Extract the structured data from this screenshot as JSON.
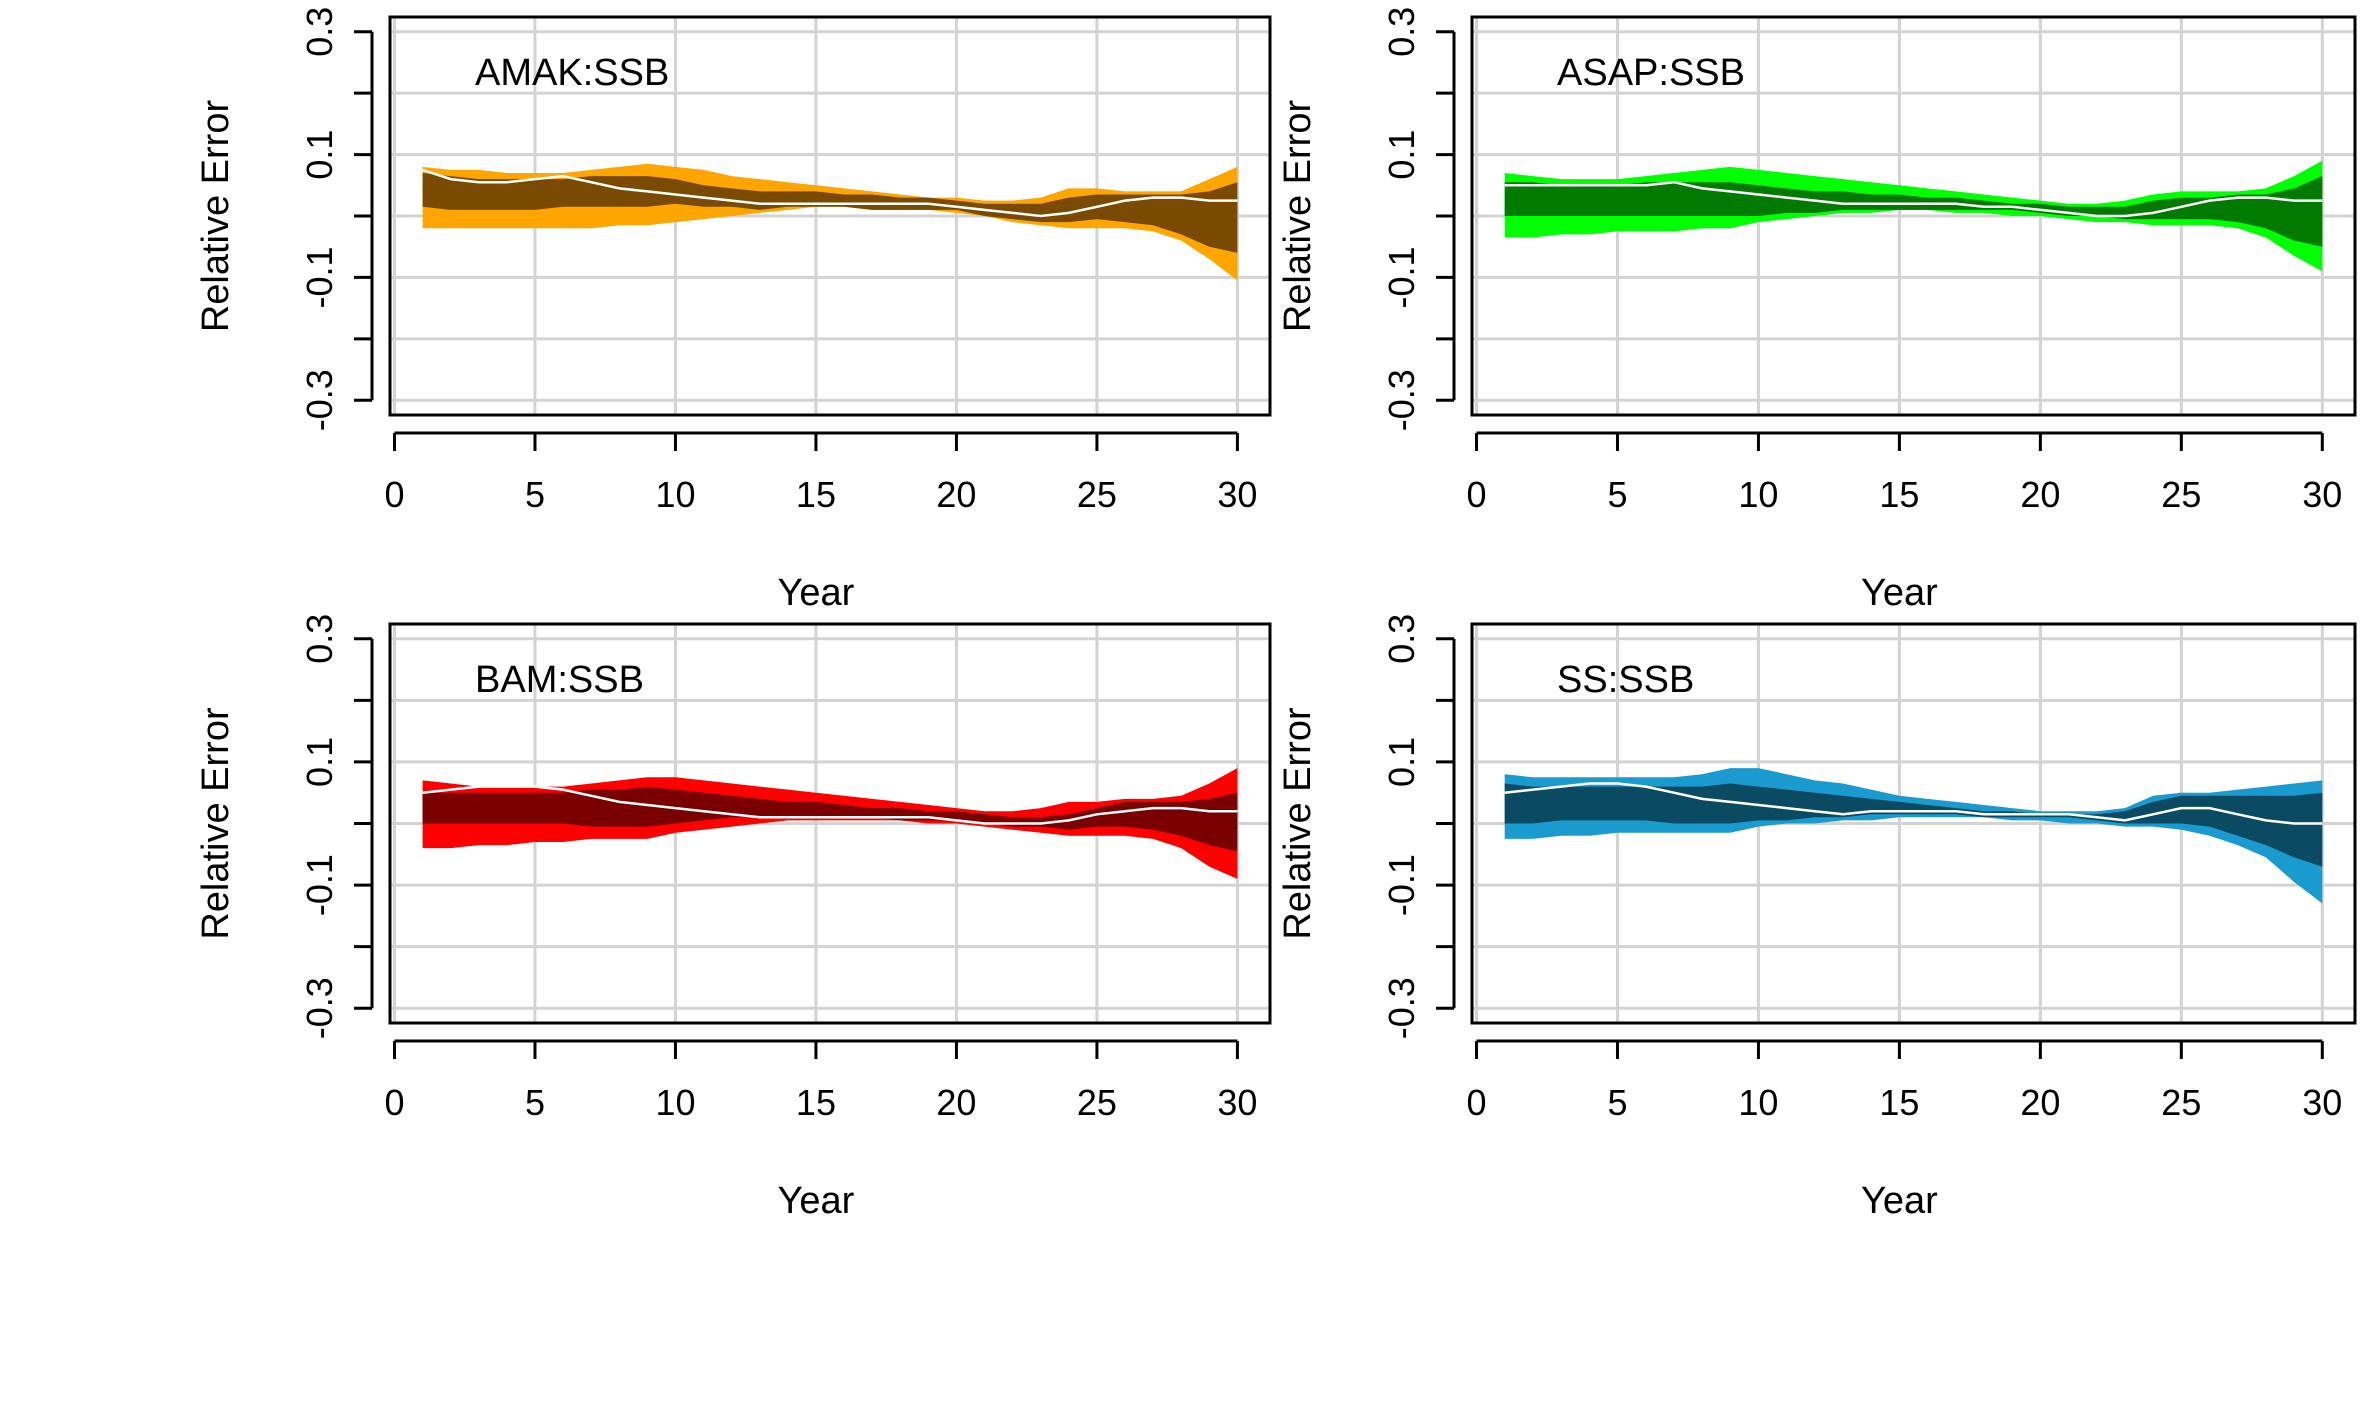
{
  "chart_data": [
    {
      "type": "area",
      "title": "AMAK:SSB",
      "xlabel": "Year",
      "ylabel": "Relative Error",
      "xlim": [
        0,
        30
      ],
      "ylim": [
        -0.3,
        0.3
      ],
      "xticks": [
        "0",
        "5",
        "10",
        "15",
        "20",
        "25",
        "30"
      ],
      "yticks": [
        "-0.3",
        "-0.1",
        "0.1",
        "0.3"
      ],
      "grid": true,
      "colors": {
        "outer": "#FFA500",
        "inner": "#7A4A00",
        "median": "#FFFFFF"
      },
      "x": [
        1,
        2,
        3,
        4,
        5,
        6,
        7,
        8,
        9,
        10,
        11,
        12,
        13,
        14,
        15,
        16,
        17,
        18,
        19,
        20,
        21,
        22,
        23,
        24,
        25,
        26,
        27,
        28,
        29,
        30
      ],
      "outer_upper": [
        0.08,
        0.075,
        0.075,
        0.07,
        0.07,
        0.07,
        0.075,
        0.08,
        0.085,
        0.08,
        0.075,
        0.065,
        0.06,
        0.055,
        0.05,
        0.045,
        0.04,
        0.035,
        0.03,
        0.03,
        0.025,
        0.025,
        0.03,
        0.045,
        0.045,
        0.04,
        0.04,
        0.04,
        0.06,
        0.08
      ],
      "inner_upper": [
        0.07,
        0.065,
        0.06,
        0.06,
        0.06,
        0.06,
        0.065,
        0.065,
        0.065,
        0.06,
        0.05,
        0.045,
        0.04,
        0.04,
        0.04,
        0.035,
        0.035,
        0.03,
        0.03,
        0.025,
        0.02,
        0.02,
        0.02,
        0.03,
        0.035,
        0.035,
        0.035,
        0.035,
        0.04,
        0.055
      ],
      "median": [
        0.075,
        0.06,
        0.055,
        0.055,
        0.06,
        0.065,
        0.055,
        0.045,
        0.04,
        0.035,
        0.03,
        0.025,
        0.02,
        0.02,
        0.02,
        0.02,
        0.02,
        0.02,
        0.02,
        0.015,
        0.01,
        0.005,
        0.0,
        0.005,
        0.015,
        0.025,
        0.03,
        0.03,
        0.025,
        0.025
      ],
      "inner_lower": [
        0.015,
        0.01,
        0.01,
        0.01,
        0.01,
        0.015,
        0.015,
        0.015,
        0.015,
        0.02,
        0.015,
        0.015,
        0.01,
        0.015,
        0.015,
        0.015,
        0.01,
        0.01,
        0.01,
        0.01,
        0.0,
        -0.005,
        -0.01,
        -0.01,
        -0.005,
        -0.01,
        -0.015,
        -0.03,
        -0.05,
        -0.06
      ],
      "outer_lower": [
        -0.02,
        -0.02,
        -0.02,
        -0.02,
        -0.02,
        -0.02,
        -0.02,
        -0.015,
        -0.015,
        -0.01,
        -0.005,
        0.0,
        0.005,
        0.01,
        0.015,
        0.015,
        0.01,
        0.01,
        0.01,
        0.005,
        0.0,
        -0.01,
        -0.015,
        -0.02,
        -0.02,
        -0.02,
        -0.025,
        -0.04,
        -0.07,
        -0.105
      ]
    },
    {
      "type": "area",
      "title": "ASAP:SSB",
      "xlabel": "Year",
      "ylabel": "Relative Error",
      "xlim": [
        0,
        30
      ],
      "ylim": [
        -0.3,
        0.3
      ],
      "xticks": [
        "0",
        "5",
        "10",
        "15",
        "20",
        "25",
        "30"
      ],
      "yticks": [
        "-0.3",
        "-0.1",
        "0.1",
        "0.3"
      ],
      "grid": true,
      "colors": {
        "outer": "#00FF00",
        "inner": "#007A00",
        "median": "#FFFFFF"
      },
      "x": [
        1,
        2,
        3,
        4,
        5,
        6,
        7,
        8,
        9,
        10,
        11,
        12,
        13,
        14,
        15,
        16,
        17,
        18,
        19,
        20,
        21,
        22,
        23,
        24,
        25,
        26,
        27,
        28,
        29,
        30
      ],
      "outer_upper": [
        0.07,
        0.065,
        0.06,
        0.06,
        0.06,
        0.065,
        0.07,
        0.075,
        0.08,
        0.075,
        0.07,
        0.065,
        0.06,
        0.055,
        0.05,
        0.045,
        0.04,
        0.035,
        0.03,
        0.025,
        0.02,
        0.02,
        0.025,
        0.035,
        0.04,
        0.04,
        0.04,
        0.045,
        0.065,
        0.09
      ],
      "inner_upper": [
        0.055,
        0.055,
        0.05,
        0.05,
        0.05,
        0.055,
        0.055,
        0.055,
        0.055,
        0.05,
        0.045,
        0.04,
        0.04,
        0.035,
        0.035,
        0.03,
        0.03,
        0.025,
        0.02,
        0.02,
        0.015,
        0.015,
        0.015,
        0.025,
        0.03,
        0.03,
        0.035,
        0.035,
        0.045,
        0.065
      ],
      "median": [
        0.05,
        0.05,
        0.05,
        0.05,
        0.05,
        0.05,
        0.055,
        0.045,
        0.04,
        0.035,
        0.03,
        0.025,
        0.02,
        0.02,
        0.02,
        0.02,
        0.02,
        0.015,
        0.015,
        0.01,
        0.005,
        0.0,
        0.0,
        0.005,
        0.015,
        0.025,
        0.03,
        0.03,
        0.025,
        0.025
      ],
      "inner_lower": [
        0.0,
        0.0,
        0.0,
        0.0,
        0.0,
        0.0,
        0.0,
        0.0,
        0.0,
        0.0,
        0.005,
        0.005,
        0.01,
        0.01,
        0.01,
        0.01,
        0.01,
        0.01,
        0.01,
        0.005,
        0.0,
        0.0,
        -0.005,
        -0.005,
        -0.005,
        -0.005,
        -0.01,
        -0.02,
        -0.04,
        -0.05
      ],
      "outer_lower": [
        -0.035,
        -0.035,
        -0.03,
        -0.03,
        -0.025,
        -0.025,
        -0.025,
        -0.02,
        -0.02,
        -0.01,
        -0.005,
        0.0,
        0.005,
        0.005,
        0.01,
        0.01,
        0.005,
        0.005,
        0.0,
        0.0,
        -0.005,
        -0.01,
        -0.01,
        -0.015,
        -0.015,
        -0.015,
        -0.02,
        -0.035,
        -0.065,
        -0.09
      ]
    },
    {
      "type": "area",
      "title": "BAM:SSB",
      "xlabel": "Year",
      "ylabel": "Relative Error",
      "xlim": [
        0,
        30
      ],
      "ylim": [
        -0.3,
        0.3
      ],
      "xticks": [
        "0",
        "5",
        "10",
        "15",
        "20",
        "25",
        "30"
      ],
      "yticks": [
        "-0.3",
        "-0.1",
        "0.1",
        "0.3"
      ],
      "grid": true,
      "colors": {
        "outer": "#FF0000",
        "inner": "#7A0000",
        "median": "#FFFFFF"
      },
      "x": [
        1,
        2,
        3,
        4,
        5,
        6,
        7,
        8,
        9,
        10,
        11,
        12,
        13,
        14,
        15,
        16,
        17,
        18,
        19,
        20,
        21,
        22,
        23,
        24,
        25,
        26,
        27,
        28,
        29,
        30
      ],
      "outer_upper": [
        0.07,
        0.065,
        0.06,
        0.06,
        0.06,
        0.06,
        0.065,
        0.07,
        0.075,
        0.075,
        0.07,
        0.065,
        0.06,
        0.055,
        0.05,
        0.045,
        0.04,
        0.035,
        0.03,
        0.025,
        0.02,
        0.02,
        0.025,
        0.035,
        0.035,
        0.04,
        0.04,
        0.045,
        0.065,
        0.09
      ],
      "inner_upper": [
        0.05,
        0.05,
        0.05,
        0.05,
        0.05,
        0.05,
        0.055,
        0.055,
        0.06,
        0.055,
        0.05,
        0.045,
        0.04,
        0.035,
        0.035,
        0.03,
        0.025,
        0.025,
        0.02,
        0.02,
        0.015,
        0.01,
        0.01,
        0.015,
        0.025,
        0.035,
        0.035,
        0.035,
        0.04,
        0.05
      ],
      "median": [
        0.05,
        0.055,
        0.06,
        0.06,
        0.06,
        0.055,
        0.045,
        0.035,
        0.03,
        0.025,
        0.02,
        0.015,
        0.01,
        0.01,
        0.01,
        0.01,
        0.01,
        0.01,
        0.01,
        0.005,
        0.0,
        0.0,
        0.0,
        0.005,
        0.015,
        0.02,
        0.025,
        0.025,
        0.02,
        0.02
      ],
      "inner_lower": [
        0.0,
        0.0,
        0.0,
        0.0,
        0.0,
        0.0,
        -0.005,
        -0.005,
        -0.005,
        0.0,
        0.005,
        0.01,
        0.01,
        0.01,
        0.01,
        0.01,
        0.01,
        0.005,
        0.005,
        0.005,
        0.0,
        -0.005,
        -0.005,
        -0.01,
        -0.005,
        -0.005,
        -0.01,
        -0.02,
        -0.035,
        -0.045
      ],
      "outer_lower": [
        -0.04,
        -0.04,
        -0.035,
        -0.035,
        -0.03,
        -0.03,
        -0.025,
        -0.025,
        -0.025,
        -0.015,
        -0.01,
        -0.005,
        0.0,
        0.005,
        0.005,
        0.005,
        0.005,
        0.005,
        0.0,
        0.0,
        -0.005,
        -0.01,
        -0.015,
        -0.02,
        -0.02,
        -0.02,
        -0.025,
        -0.04,
        -0.07,
        -0.09
      ]
    },
    {
      "type": "area",
      "title": "SS:SSB",
      "xlabel": "Year",
      "ylabel": "Relative Error",
      "xlim": [
        0,
        30
      ],
      "ylim": [
        -0.3,
        0.3
      ],
      "xticks": [
        "0",
        "5",
        "10",
        "15",
        "20",
        "25",
        "30"
      ],
      "yticks": [
        "-0.3",
        "-0.1",
        "0.1",
        "0.3"
      ],
      "grid": true,
      "colors": {
        "outer": "#1A9BD0",
        "inner": "#0B4A63",
        "median": "#FFFFFF"
      },
      "x": [
        1,
        2,
        3,
        4,
        5,
        6,
        7,
        8,
        9,
        10,
        11,
        12,
        13,
        14,
        15,
        16,
        17,
        18,
        19,
        20,
        21,
        22,
        23,
        24,
        25,
        26,
        27,
        28,
        29,
        30
      ],
      "outer_upper": [
        0.08,
        0.075,
        0.075,
        0.075,
        0.075,
        0.075,
        0.075,
        0.08,
        0.09,
        0.09,
        0.08,
        0.07,
        0.065,
        0.055,
        0.045,
        0.04,
        0.035,
        0.03,
        0.025,
        0.02,
        0.02,
        0.02,
        0.025,
        0.045,
        0.05,
        0.05,
        0.055,
        0.06,
        0.065,
        0.07
      ],
      "inner_upper": [
        0.065,
        0.06,
        0.06,
        0.06,
        0.06,
        0.06,
        0.06,
        0.06,
        0.065,
        0.06,
        0.055,
        0.05,
        0.045,
        0.04,
        0.035,
        0.03,
        0.025,
        0.02,
        0.02,
        0.015,
        0.015,
        0.015,
        0.02,
        0.035,
        0.045,
        0.045,
        0.045,
        0.045,
        0.045,
        0.05
      ],
      "median": [
        0.05,
        0.055,
        0.06,
        0.065,
        0.065,
        0.06,
        0.05,
        0.04,
        0.035,
        0.03,
        0.025,
        0.02,
        0.015,
        0.02,
        0.02,
        0.02,
        0.02,
        0.015,
        0.015,
        0.015,
        0.015,
        0.01,
        0.005,
        0.015,
        0.025,
        0.025,
        0.015,
        0.005,
        0.0,
        0.0
      ],
      "inner_lower": [
        0.0,
        0.0,
        0.005,
        0.005,
        0.005,
        0.005,
        0.0,
        0.0,
        0.0,
        0.005,
        0.005,
        0.01,
        0.01,
        0.015,
        0.015,
        0.015,
        0.015,
        0.01,
        0.01,
        0.01,
        0.01,
        0.005,
        0.0,
        0.0,
        0.0,
        -0.005,
        -0.02,
        -0.035,
        -0.055,
        -0.07
      ],
      "outer_lower": [
        -0.025,
        -0.025,
        -0.02,
        -0.02,
        -0.015,
        -0.015,
        -0.015,
        -0.015,
        -0.015,
        -0.005,
        0.0,
        0.0,
        0.005,
        0.005,
        0.01,
        0.01,
        0.01,
        0.01,
        0.005,
        0.005,
        0.0,
        0.0,
        -0.005,
        -0.005,
        -0.01,
        -0.02,
        -0.035,
        -0.055,
        -0.095,
        -0.13
      ]
    }
  ]
}
